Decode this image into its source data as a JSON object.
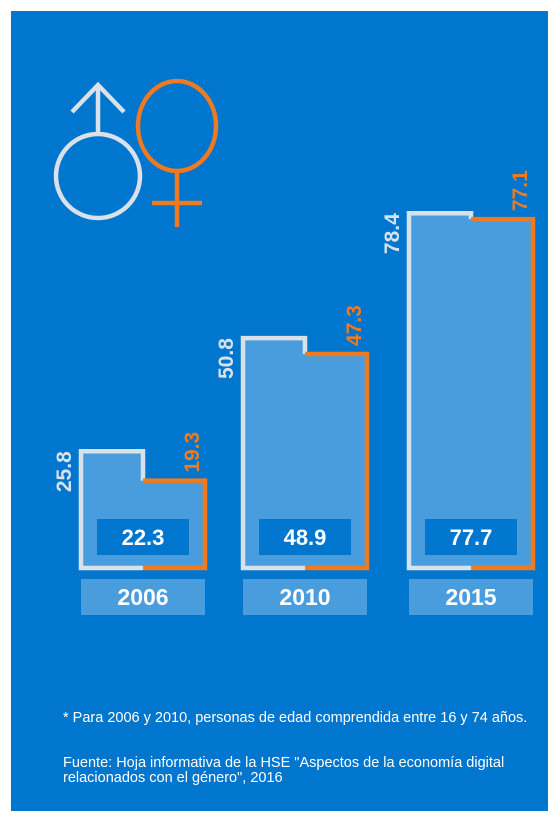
{
  "colors": {
    "background": "#0076CE",
    "bar_fill": "#4A9DDC",
    "men": "#D9E1EB",
    "women": "#EE7A21",
    "year_box": "#4A9DDC",
    "text": "#ffffff"
  },
  "icons": {
    "men": "male-symbol-icon",
    "women": "female-symbol-icon"
  },
  "chart_data": {
    "type": "bar",
    "categories": [
      "2006",
      "2010",
      "2015"
    ],
    "series": [
      {
        "values": [
          25.8,
          50.8,
          78.4
        ],
        "color": "#D9E1EB"
      },
      {
        "values": [
          19.3,
          47.3,
          77.1
        ],
        "color": "#EE7A21"
      },
      {
        "values": [
          22.3,
          48.9,
          77.7
        ],
        "color": "#ffffff"
      }
    ],
    "ylim": [
      0,
      80
    ]
  },
  "notes": {
    "footnote": "* Para 2006 y 2010, personas de edad comprendida entre 16 y 74 años.",
    "source": "Fuente: Hoja informativa de la HSE \"Aspectos de la economía digital relacionados con el género\", 2016"
  }
}
